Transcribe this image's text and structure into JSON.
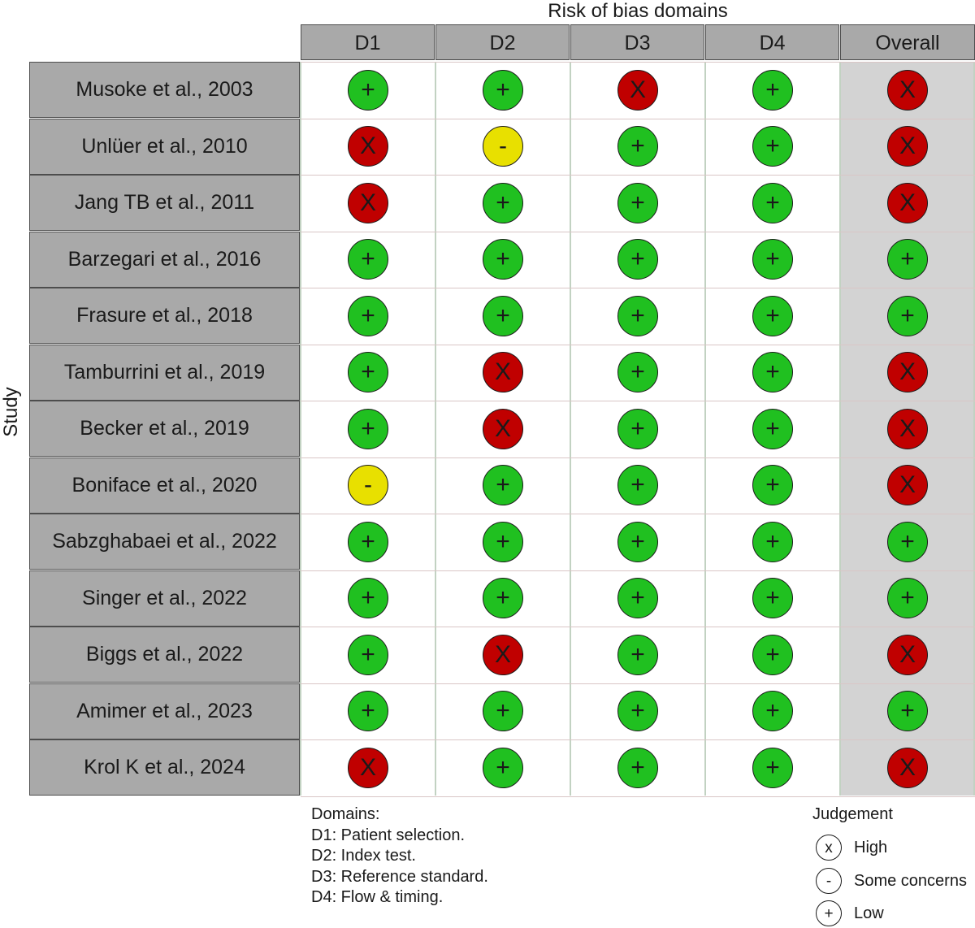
{
  "chart_data": {
    "type": "table",
    "title": "Risk of bias domains",
    "ylabel": "Study",
    "domains": [
      "D1",
      "D2",
      "D3",
      "D4",
      "Overall"
    ],
    "studies": [
      {
        "name": "Musoke et al., 2003",
        "judgements": [
          "Low",
          "Low",
          "High",
          "Low",
          "High"
        ]
      },
      {
        "name": "Unlüer et al., 2010",
        "judgements": [
          "High",
          "Some concerns",
          "Low",
          "Low",
          "High"
        ]
      },
      {
        "name": "Jang TB et al., 2011",
        "judgements": [
          "High",
          "Low",
          "Low",
          "Low",
          "High"
        ]
      },
      {
        "name": "Barzegari et al., 2016",
        "judgements": [
          "Low",
          "Low",
          "Low",
          "Low",
          "Low"
        ]
      },
      {
        "name": "Frasure et al., 2018",
        "judgements": [
          "Low",
          "Low",
          "Low",
          "Low",
          "Low"
        ]
      },
      {
        "name": "Tamburrini et al., 2019",
        "judgements": [
          "Low",
          "High",
          "Low",
          "Low",
          "High"
        ]
      },
      {
        "name": "Becker et al., 2019",
        "judgements": [
          "Low",
          "High",
          "Low",
          "Low",
          "High"
        ]
      },
      {
        "name": "Boniface et al., 2020",
        "judgements": [
          "Some concerns",
          "Low",
          "Low",
          "Low",
          "High"
        ]
      },
      {
        "name": "Sabzghabaei et al., 2022",
        "judgements": [
          "Low",
          "Low",
          "Low",
          "Low",
          "Low"
        ]
      },
      {
        "name": "Singer et al., 2022",
        "judgements": [
          "Low",
          "Low",
          "Low",
          "Low",
          "Low"
        ]
      },
      {
        "name": "Biggs et al., 2022",
        "judgements": [
          "Low",
          "High",
          "Low",
          "Low",
          "High"
        ]
      },
      {
        "name": "Amimer et al., 2023",
        "judgements": [
          "Low",
          "Low",
          "Low",
          "Low",
          "Low"
        ]
      },
      {
        "name": "Krol K et al., 2024",
        "judgements": [
          "High",
          "Low",
          "Low",
          "Low",
          "High"
        ]
      }
    ],
    "judgement_levels": [
      {
        "name": "High",
        "symbol": "X",
        "legend_symbol": "x",
        "color": "#c00000"
      },
      {
        "name": "Some concerns",
        "symbol": "-",
        "legend_symbol": "-",
        "color": "#e8e000"
      },
      {
        "name": "Low",
        "symbol": "+",
        "legend_symbol": "+",
        "color": "#20c020"
      }
    ],
    "domains_legend": {
      "title": "Domains:",
      "items": [
        "D1: Patient selection.",
        "D2: Index test.",
        "D3: Reference standard.",
        "D4: Flow & timing."
      ]
    },
    "legend_title": "Judgement",
    "legend_position": "bottom-right"
  }
}
